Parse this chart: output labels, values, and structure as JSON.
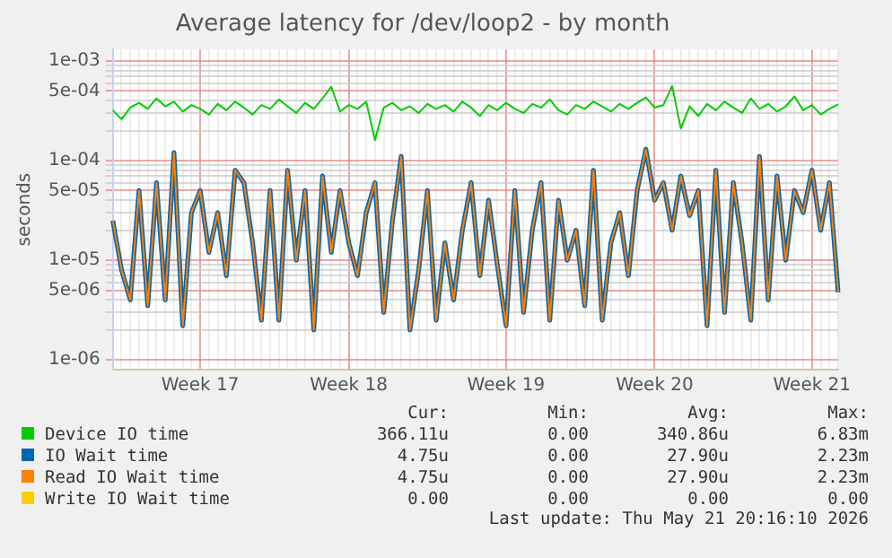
{
  "chart_data": {
    "type": "line",
    "title": "Average latency for /dev/loop2 - by month",
    "ylabel": "seconds",
    "log": "y",
    "grid": true,
    "legend": "bottom",
    "marker": "none",
    "line_style": "solid",
    "ylim": [
      8e-07,
      0.0013
    ],
    "yticks": [
      {
        "value": 1e-06,
        "label": "1e-06"
      },
      {
        "value": 2e-06,
        "label": null
      },
      {
        "value": 3e-06,
        "label": null
      },
      {
        "value": 4e-06,
        "label": null
      },
      {
        "value": 5e-06,
        "label": "5e-06"
      },
      {
        "value": 6e-06,
        "label": null
      },
      {
        "value": 7e-06,
        "label": null
      },
      {
        "value": 8e-06,
        "label": null
      },
      {
        "value": 9e-06,
        "label": null
      },
      {
        "value": 1e-05,
        "label": "1e-05"
      },
      {
        "value": 2e-05,
        "label": null
      },
      {
        "value": 3e-05,
        "label": null
      },
      {
        "value": 4e-05,
        "label": null
      },
      {
        "value": 5e-05,
        "label": "5e-05"
      },
      {
        "value": 6e-05,
        "label": null
      },
      {
        "value": 7e-05,
        "label": null
      },
      {
        "value": 8e-05,
        "label": null
      },
      {
        "value": 9e-05,
        "label": null
      },
      {
        "value": 0.0001,
        "label": "1e-04"
      },
      {
        "value": 0.0002,
        "label": null
      },
      {
        "value": 0.0003,
        "label": null
      },
      {
        "value": 0.0004,
        "label": null
      },
      {
        "value": 0.0005,
        "label": "5e-04"
      },
      {
        "value": 0.0006,
        "label": null
      },
      {
        "value": 0.0007,
        "label": null
      },
      {
        "value": 0.0008,
        "label": null
      },
      {
        "value": 0.0009,
        "label": null
      },
      {
        "value": 0.001,
        "label": "1e-03"
      }
    ],
    "categories": [
      null,
      null,
      null,
      null,
      null,
      null,
      null,
      null,
      null,
      null,
      "Week 17",
      null,
      null,
      null,
      null,
      null,
      null,
      null,
      null,
      null,
      null,
      null,
      null,
      null,
      null,
      null,
      null,
      "Week 18",
      null,
      null,
      null,
      null,
      null,
      null,
      null,
      null,
      null,
      null,
      null,
      null,
      null,
      null,
      null,
      null,
      null,
      "Week 19",
      null,
      null,
      null,
      null,
      null,
      null,
      null,
      null,
      null,
      null,
      null,
      null,
      null,
      null,
      null,
      null,
      "Week 20",
      null,
      null,
      null,
      null,
      null,
      null,
      null,
      null,
      null,
      null,
      null,
      null,
      null,
      null,
      null,
      null,
      null,
      "Week 21",
      null,
      null,
      null
    ],
    "series": [
      {
        "name": "Device IO time",
        "color": "#00cc00",
        "values": [
          0.00032,
          0.00026,
          0.00034,
          0.00038,
          0.00033,
          0.00042,
          0.00035,
          0.00039,
          0.00031,
          0.00036,
          0.00033,
          0.00029,
          0.00037,
          0.00032,
          0.00039,
          0.00034,
          0.00029,
          0.00036,
          0.00033,
          0.00041,
          0.00035,
          0.0003,
          0.00038,
          0.00033,
          0.00042,
          0.00055,
          0.00031,
          0.00036,
          0.00033,
          0.00039,
          0.00016,
          0.00034,
          0.00038,
          0.00032,
          0.00035,
          0.0003,
          0.00037,
          0.00033,
          0.00036,
          0.00031,
          0.00039,
          0.00034,
          0.00028,
          0.00036,
          0.00032,
          0.00038,
          0.00033,
          0.0003,
          0.00037,
          0.00034,
          0.00041,
          0.00032,
          0.00029,
          0.00036,
          0.00033,
          0.00039,
          0.00035,
          0.00031,
          0.00037,
          0.00033,
          0.00038,
          0.00043,
          0.00034,
          0.00036,
          0.00056,
          0.00021,
          0.00035,
          0.00028,
          0.00037,
          0.00032,
          0.00039,
          0.00034,
          0.0003,
          0.00042,
          0.00033,
          0.00037,
          0.00031,
          0.00035,
          0.00044,
          0.00032,
          0.00036,
          0.00029,
          0.00033,
          0.000366
        ]
      },
      {
        "name": "IO Wait time",
        "color": "#0066b3",
        "values": [
          2.5e-05,
          8e-06,
          4e-06,
          5e-05,
          3.5e-06,
          6e-05,
          4e-06,
          0.00012,
          2.2e-06,
          3e-05,
          5e-05,
          1.2e-05,
          3e-05,
          7e-06,
          8e-05,
          6e-05,
          1.5e-05,
          2.5e-06,
          5e-05,
          2.5e-06,
          8e-05,
          1e-05,
          5e-05,
          2e-06,
          7e-05,
          1.2e-05,
          5e-05,
          1.5e-05,
          7e-06,
          3e-05,
          6e-05,
          3e-06,
          2.5e-05,
          0.00011,
          2e-06,
          8e-06,
          5e-05,
          2.5e-06,
          1.5e-05,
          4e-06,
          2e-05,
          6e-05,
          7e-06,
          4e-05,
          9e-06,
          2.2e-06,
          5e-05,
          3e-06,
          2e-05,
          6e-05,
          2.5e-06,
          4e-05,
          1e-05,
          2e-05,
          3.5e-06,
          8e-05,
          2.5e-06,
          1.5e-05,
          3e-05,
          7e-06,
          5e-05,
          0.00013,
          4e-05,
          6e-05,
          2e-05,
          7e-05,
          2.8e-05,
          5e-05,
          2.2e-06,
          8e-05,
          3e-06,
          6e-05,
          1.5e-05,
          2.5e-06,
          0.00011,
          4e-06,
          7e-05,
          1e-05,
          5e-05,
          3e-05,
          8e-05,
          2e-05,
          6e-05,
          4.75e-06
        ]
      },
      {
        "name": "Read IO Wait time",
        "color": "#ff8000",
        "values": [
          2.5e-05,
          8e-06,
          4e-06,
          5e-05,
          3.5e-06,
          6e-05,
          4e-06,
          0.00012,
          2.2e-06,
          3e-05,
          5e-05,
          1.2e-05,
          3e-05,
          7e-06,
          8e-05,
          6e-05,
          1.5e-05,
          2.5e-06,
          5e-05,
          2.5e-06,
          8e-05,
          1e-05,
          5e-05,
          2e-06,
          7e-05,
          1.2e-05,
          5e-05,
          1.5e-05,
          7e-06,
          3e-05,
          6e-05,
          3e-06,
          2.5e-05,
          0.00011,
          2e-06,
          8e-06,
          5e-05,
          2.5e-06,
          1.5e-05,
          4e-06,
          2e-05,
          6e-05,
          7e-06,
          4e-05,
          9e-06,
          2.2e-06,
          5e-05,
          3e-06,
          2e-05,
          6e-05,
          2.5e-06,
          4e-05,
          1e-05,
          2e-05,
          3.5e-06,
          8e-05,
          2.5e-06,
          1.5e-05,
          3e-05,
          7e-06,
          5e-05,
          0.00013,
          4e-05,
          6e-05,
          2e-05,
          7e-05,
          2.8e-05,
          5e-05,
          2.2e-06,
          8e-05,
          3e-06,
          6e-05,
          1.5e-05,
          2.5e-06,
          0.00011,
          4e-06,
          7e-05,
          1e-05,
          5e-05,
          3e-05,
          8e-05,
          2e-05,
          6e-05,
          4.75e-06
        ]
      },
      {
        "name": "Write IO Wait time",
        "color": "#ffcc00",
        "values": [
          null,
          null,
          null,
          null,
          null,
          null,
          null,
          null,
          null,
          null,
          null,
          null,
          null,
          null,
          null,
          null,
          null,
          null,
          null,
          null,
          null,
          null,
          null,
          null,
          null,
          null,
          null,
          null,
          null,
          null,
          null,
          null,
          null,
          null,
          null,
          null,
          null,
          null,
          null,
          null,
          null,
          null,
          null,
          null,
          null,
          null,
          null,
          null,
          null,
          null,
          null,
          null,
          null,
          null,
          null,
          null,
          null,
          null,
          null,
          null,
          null,
          null,
          null,
          null,
          null,
          null,
          null,
          null,
          null,
          null,
          null,
          null,
          null,
          null,
          null,
          null,
          null,
          null,
          null,
          null,
          null,
          null,
          null,
          null
        ]
      }
    ],
    "annotations": [
      "Cur:",
      "Min:",
      "Avg:",
      "Max:",
      "366.11u",
      "0.00",
      "340.86u",
      "6.83m",
      "4.75u",
      "0.00",
      "27.90u",
      "2.23m",
      "4.75u",
      "0.00",
      "27.90u",
      "2.23m",
      "0.00",
      "0.00",
      "0.00",
      "0.00",
      "Last update: Thu May 21 20:16:10 2026"
    ]
  }
}
